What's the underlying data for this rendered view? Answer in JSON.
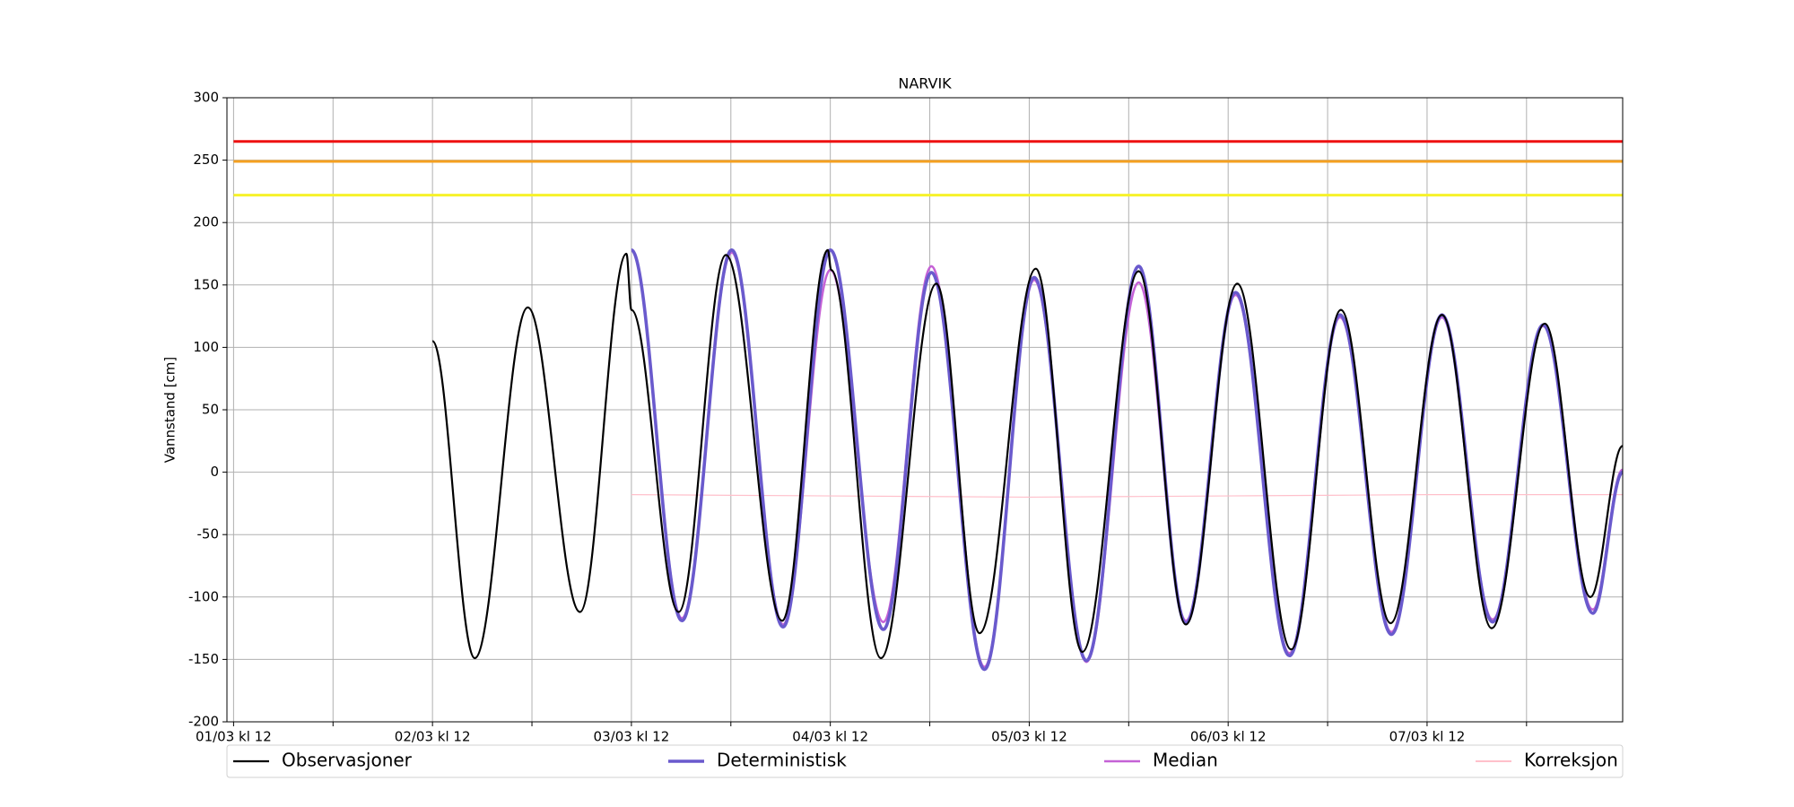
{
  "chart_data": {
    "type": "line",
    "title": "NARVIK",
    "ylabel": "Vannstand [cm]",
    "xlim": [
      11.2,
      179.6
    ],
    "ylim": [
      -200,
      300
    ],
    "yticks": [
      -200,
      -150,
      -100,
      -50,
      0,
      50,
      100,
      150,
      200,
      250,
      300
    ],
    "xticks": [
      {
        "value": 12,
        "label": "01/03 kl 12"
      },
      {
        "value": 36,
        "label": "02/03 kl 12"
      },
      {
        "value": 60,
        "label": "03/03 kl 12"
      },
      {
        "value": 84,
        "label": "04/03 kl 12"
      },
      {
        "value": 108,
        "label": "05/03 kl 12"
      },
      {
        "value": 132,
        "label": "06/03 kl 12"
      },
      {
        "value": 156,
        "label": "07/03 kl 12"
      }
    ],
    "xminorticks": [
      24,
      48,
      72,
      96,
      120,
      144,
      168
    ],
    "grid": true,
    "legend": "bottom",
    "hlines": [
      {
        "value": 265,
        "color": "#ee1111"
      },
      {
        "value": 249,
        "color": "#f5a020"
      },
      {
        "value": 222,
        "color": "#f7f22a"
      }
    ],
    "series": [
      {
        "name": "Observasjoner",
        "color": "#000000",
        "width": 2.2,
        "x": [
          36,
          41.1,
          47.5,
          53.8,
          59.4,
          60,
          65.7,
          71.4,
          78.2,
          83.7,
          84.1,
          90.1,
          96.8,
          102.0,
          108.8,
          114.4,
          121.2,
          126.9,
          133.1,
          139.6,
          145.6,
          151.6,
          157.8,
          163.8,
          170.2,
          175.7,
          179.6
        ],
        "values": [
          105,
          -149,
          132,
          -112,
          175,
          130,
          -112,
          174,
          -119,
          178,
          162,
          -149,
          151,
          -129,
          163,
          -144,
          161,
          -122,
          151,
          -142,
          130,
          -121,
          126,
          -125,
          119,
          -100,
          21
        ]
      },
      {
        "name": "Deterministisk",
        "color": "#6a5acd",
        "width": 3.6,
        "x": [
          60,
          66.1,
          72.1,
          78.3,
          84.0,
          90.4,
          96.2,
          102.6,
          108.6,
          114.9,
          121.2,
          126.9,
          132.9,
          139.4,
          145.5,
          151.7,
          157.8,
          163.9,
          170.0,
          176.0,
          179.6
        ],
        "values": [
          178,
          -119,
          178,
          -124,
          178,
          -126,
          160,
          -158,
          156,
          -151,
          165,
          -121,
          144,
          -147,
          126,
          -130,
          126,
          -120,
          118,
          -113,
          0
        ]
      },
      {
        "name": "Median",
        "color": "#c562d6",
        "width": 2.6,
        "x": [
          60,
          66.1,
          72.1,
          78.3,
          84.0,
          90.4,
          96.2,
          102.6,
          108.6,
          114.9,
          121.2,
          126.9,
          132.9,
          139.4,
          145.5,
          151.7,
          157.8,
          163.9,
          170.0,
          176.0,
          179.6
        ],
        "values": [
          178,
          -117,
          176,
          -122,
          162,
          -120,
          165,
          -156,
          154,
          -152,
          152,
          -119,
          142,
          -145,
          124,
          -128,
          124,
          -118,
          117,
          -110,
          2
        ]
      },
      {
        "name": "Korreksjon",
        "color": "#ffc0cb",
        "width": 1.2,
        "x": [
          60,
          84,
          108,
          132,
          156,
          179.6
        ],
        "values": [
          -18,
          -19,
          -20,
          -19,
          -18,
          -18
        ]
      }
    ]
  }
}
